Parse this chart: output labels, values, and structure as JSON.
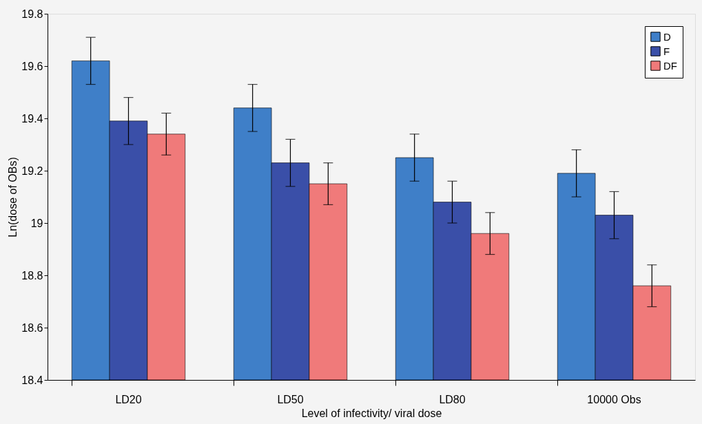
{
  "chart_data": {
    "type": "bar",
    "xlabel": "Level of infectivity/ viral dose",
    "ylabel": "Ln(dose of OBs)",
    "categories": [
      "LD20",
      "LD50",
      "LD80",
      "10000 Obs"
    ],
    "series": [
      {
        "name": "D",
        "color": "#3f7fc8",
        "values": [
          19.62,
          19.44,
          19.25,
          19.19
        ],
        "errors": [
          0.09,
          0.09,
          0.09,
          0.09
        ]
      },
      {
        "name": "F",
        "color": "#3a4fa8",
        "values": [
          19.39,
          19.23,
          19.08,
          19.03
        ],
        "errors": [
          0.09,
          0.09,
          0.08,
          0.09
        ]
      },
      {
        "name": "DF",
        "color": "#f07a7a",
        "values": [
          19.34,
          19.15,
          18.96,
          18.76
        ],
        "errors": [
          0.08,
          0.08,
          0.08,
          0.08
        ]
      }
    ],
    "ylim": [
      18.4,
      19.8
    ],
    "yticks": [
      18.4,
      18.6,
      18.8,
      19,
      19.2,
      19.4,
      19.6,
      19.8
    ],
    "grid": false,
    "legend": "top right"
  }
}
